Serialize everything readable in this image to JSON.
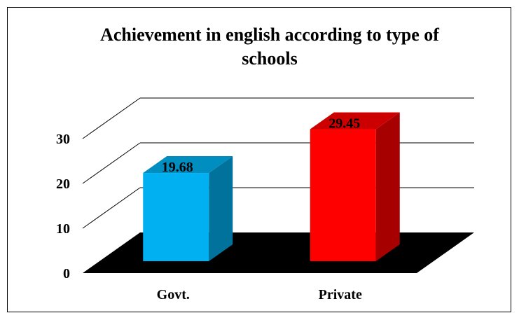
{
  "chart_data": {
    "type": "bar",
    "title": "Achievement in english according to type of schools",
    "title_lines": [
      "Achievement in english according to type of",
      "schools"
    ],
    "categories": [
      "Govt.",
      "Private"
    ],
    "values": [
      19.68,
      29.45
    ],
    "value_labels": [
      "19.68",
      "29.45"
    ],
    "ylim": [
      0,
      30
    ],
    "yticks": [
      0,
      10,
      20,
      30
    ],
    "ytick_labels": [
      "0",
      "10",
      "20",
      "30"
    ],
    "xlabel": "",
    "ylabel": "",
    "grid": true,
    "legend": "none",
    "style": "3d",
    "colors": {
      "bars": [
        "#00b0f0",
        "#ff0000"
      ],
      "floor": "#000000",
      "gridlines": "#000000"
    }
  }
}
